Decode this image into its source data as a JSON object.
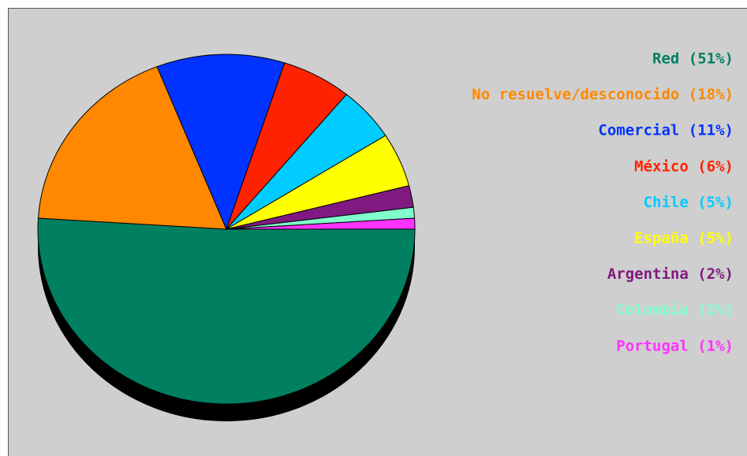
{
  "chart_data": {
    "type": "pie",
    "categories": [
      "Red (51%)",
      "No resuelve/desconocido (18%)",
      "Comercial (11%)",
      "México (6%)",
      "Chile (5%)",
      "España (5%)",
      "Argentina (2%)",
      "Colombia (1%)",
      "Portugal (1%)"
    ],
    "values": [
      51,
      18,
      11,
      6,
      5,
      5,
      2,
      1,
      1
    ],
    "colors": [
      "#008060",
      "#ff8800",
      "#0033ff",
      "#ff2200",
      "#00ccff",
      "#ffff00",
      "#801a80",
      "#80ffcc",
      "#ff33ff"
    ],
    "legend": "right"
  }
}
